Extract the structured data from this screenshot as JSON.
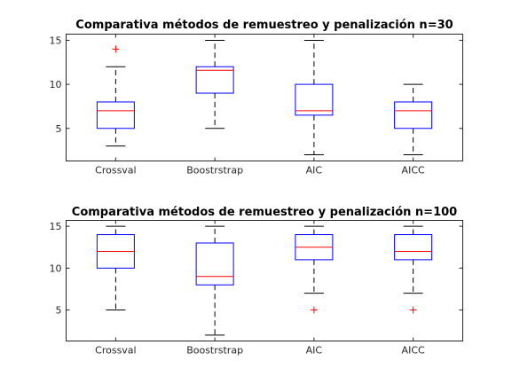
{
  "chart_data": [
    {
      "type": "box",
      "title": "Comparativa métodos de remuestreo y penalización n=30",
      "xlabel": "",
      "ylabel": "",
      "categories": [
        "Crossval",
        "Boostrstrap",
        "AIC",
        "AICC"
      ],
      "ylim": [
        1.3,
        15.7
      ],
      "yticks": [
        5,
        10,
        15
      ],
      "grid": false,
      "boxes": [
        {
          "whisker_low": 3,
          "q1": 5,
          "median": 7,
          "q3": 8,
          "whisker_high": 12,
          "outliers": [
            14
          ]
        },
        {
          "whisker_low": 5,
          "q1": 9,
          "median": 11.6,
          "q3": 12,
          "whisker_high": 15,
          "outliers": []
        },
        {
          "whisker_low": 2,
          "q1": 6.5,
          "median": 7,
          "q3": 10,
          "whisker_high": 15,
          "outliers": []
        },
        {
          "whisker_low": 2,
          "q1": 5,
          "median": 7,
          "q3": 8,
          "whisker_high": 10,
          "outliers": []
        }
      ],
      "colors": {
        "box": "#0000ff",
        "median": "#ff0000",
        "whisker": "#000000",
        "outlier": "#ff0000"
      }
    },
    {
      "type": "box",
      "title": "Comparativa métodos de remuestreo y penalización n=100",
      "xlabel": "",
      "ylabel": "",
      "categories": [
        "Crossval",
        "Boostrstrap",
        "AIC",
        "AICC"
      ],
      "ylim": [
        1.3,
        15.7
      ],
      "yticks": [
        5,
        10,
        15
      ],
      "grid": false,
      "boxes": [
        {
          "whisker_low": 5,
          "q1": 10,
          "median": 12,
          "q3": 14,
          "whisker_high": 15,
          "outliers": []
        },
        {
          "whisker_low": 2,
          "q1": 8,
          "median": 9,
          "q3": 13,
          "whisker_high": 15,
          "outliers": []
        },
        {
          "whisker_low": 7,
          "q1": 11,
          "median": 12.5,
          "q3": 14,
          "whisker_high": 15,
          "outliers": [
            5
          ]
        },
        {
          "whisker_low": 7,
          "q1": 11,
          "median": 12,
          "q3": 14,
          "whisker_high": 15,
          "outliers": [
            5
          ]
        }
      ],
      "colors": {
        "box": "#0000ff",
        "median": "#ff0000",
        "whisker": "#000000",
        "outlier": "#ff0000"
      }
    }
  ]
}
